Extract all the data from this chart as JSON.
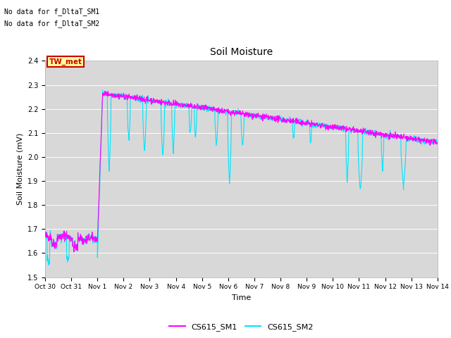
{
  "title": "Soil Moisture",
  "xlabel": "Time",
  "ylabel": "Soil Moisture (mV)",
  "ylim": [
    1.5,
    2.4
  ],
  "yticks": [
    1.5,
    1.6,
    1.7,
    1.8,
    1.9,
    2.0,
    2.1,
    2.2,
    2.3,
    2.4
  ],
  "bg_color": "#d8d8d8",
  "fig_color": "#ffffff",
  "line1_color": "#ff00ff",
  "line2_color": "#00e5ff",
  "line1_label": "CS615_SM1",
  "line2_label": "CS615_SM2",
  "tw_label": "TW_met",
  "tw_bg": "#ffff99",
  "tw_border": "#cc0000",
  "tw_text_color": "#cc0000",
  "annotation1": "No data for f_DltaT_SM1",
  "annotation2": "No data for f_DltaT_SM2",
  "x_tick_labels": [
    "Oct 30",
    "Oct 31",
    "Nov 1",
    "Nov 2",
    "Nov 3",
    "Nov 4",
    "Nov 5",
    "Nov 6",
    "Nov 7",
    "Nov 8",
    "Nov 9",
    "Nov 10",
    "Nov 11",
    "Nov 12",
    "Nov 13",
    "Nov 14"
  ],
  "x_tick_positions": [
    0,
    1,
    2,
    3,
    4,
    5,
    6,
    7,
    8,
    9,
    10,
    11,
    12,
    13,
    14,
    15
  ],
  "xlim": [
    0,
    15
  ]
}
